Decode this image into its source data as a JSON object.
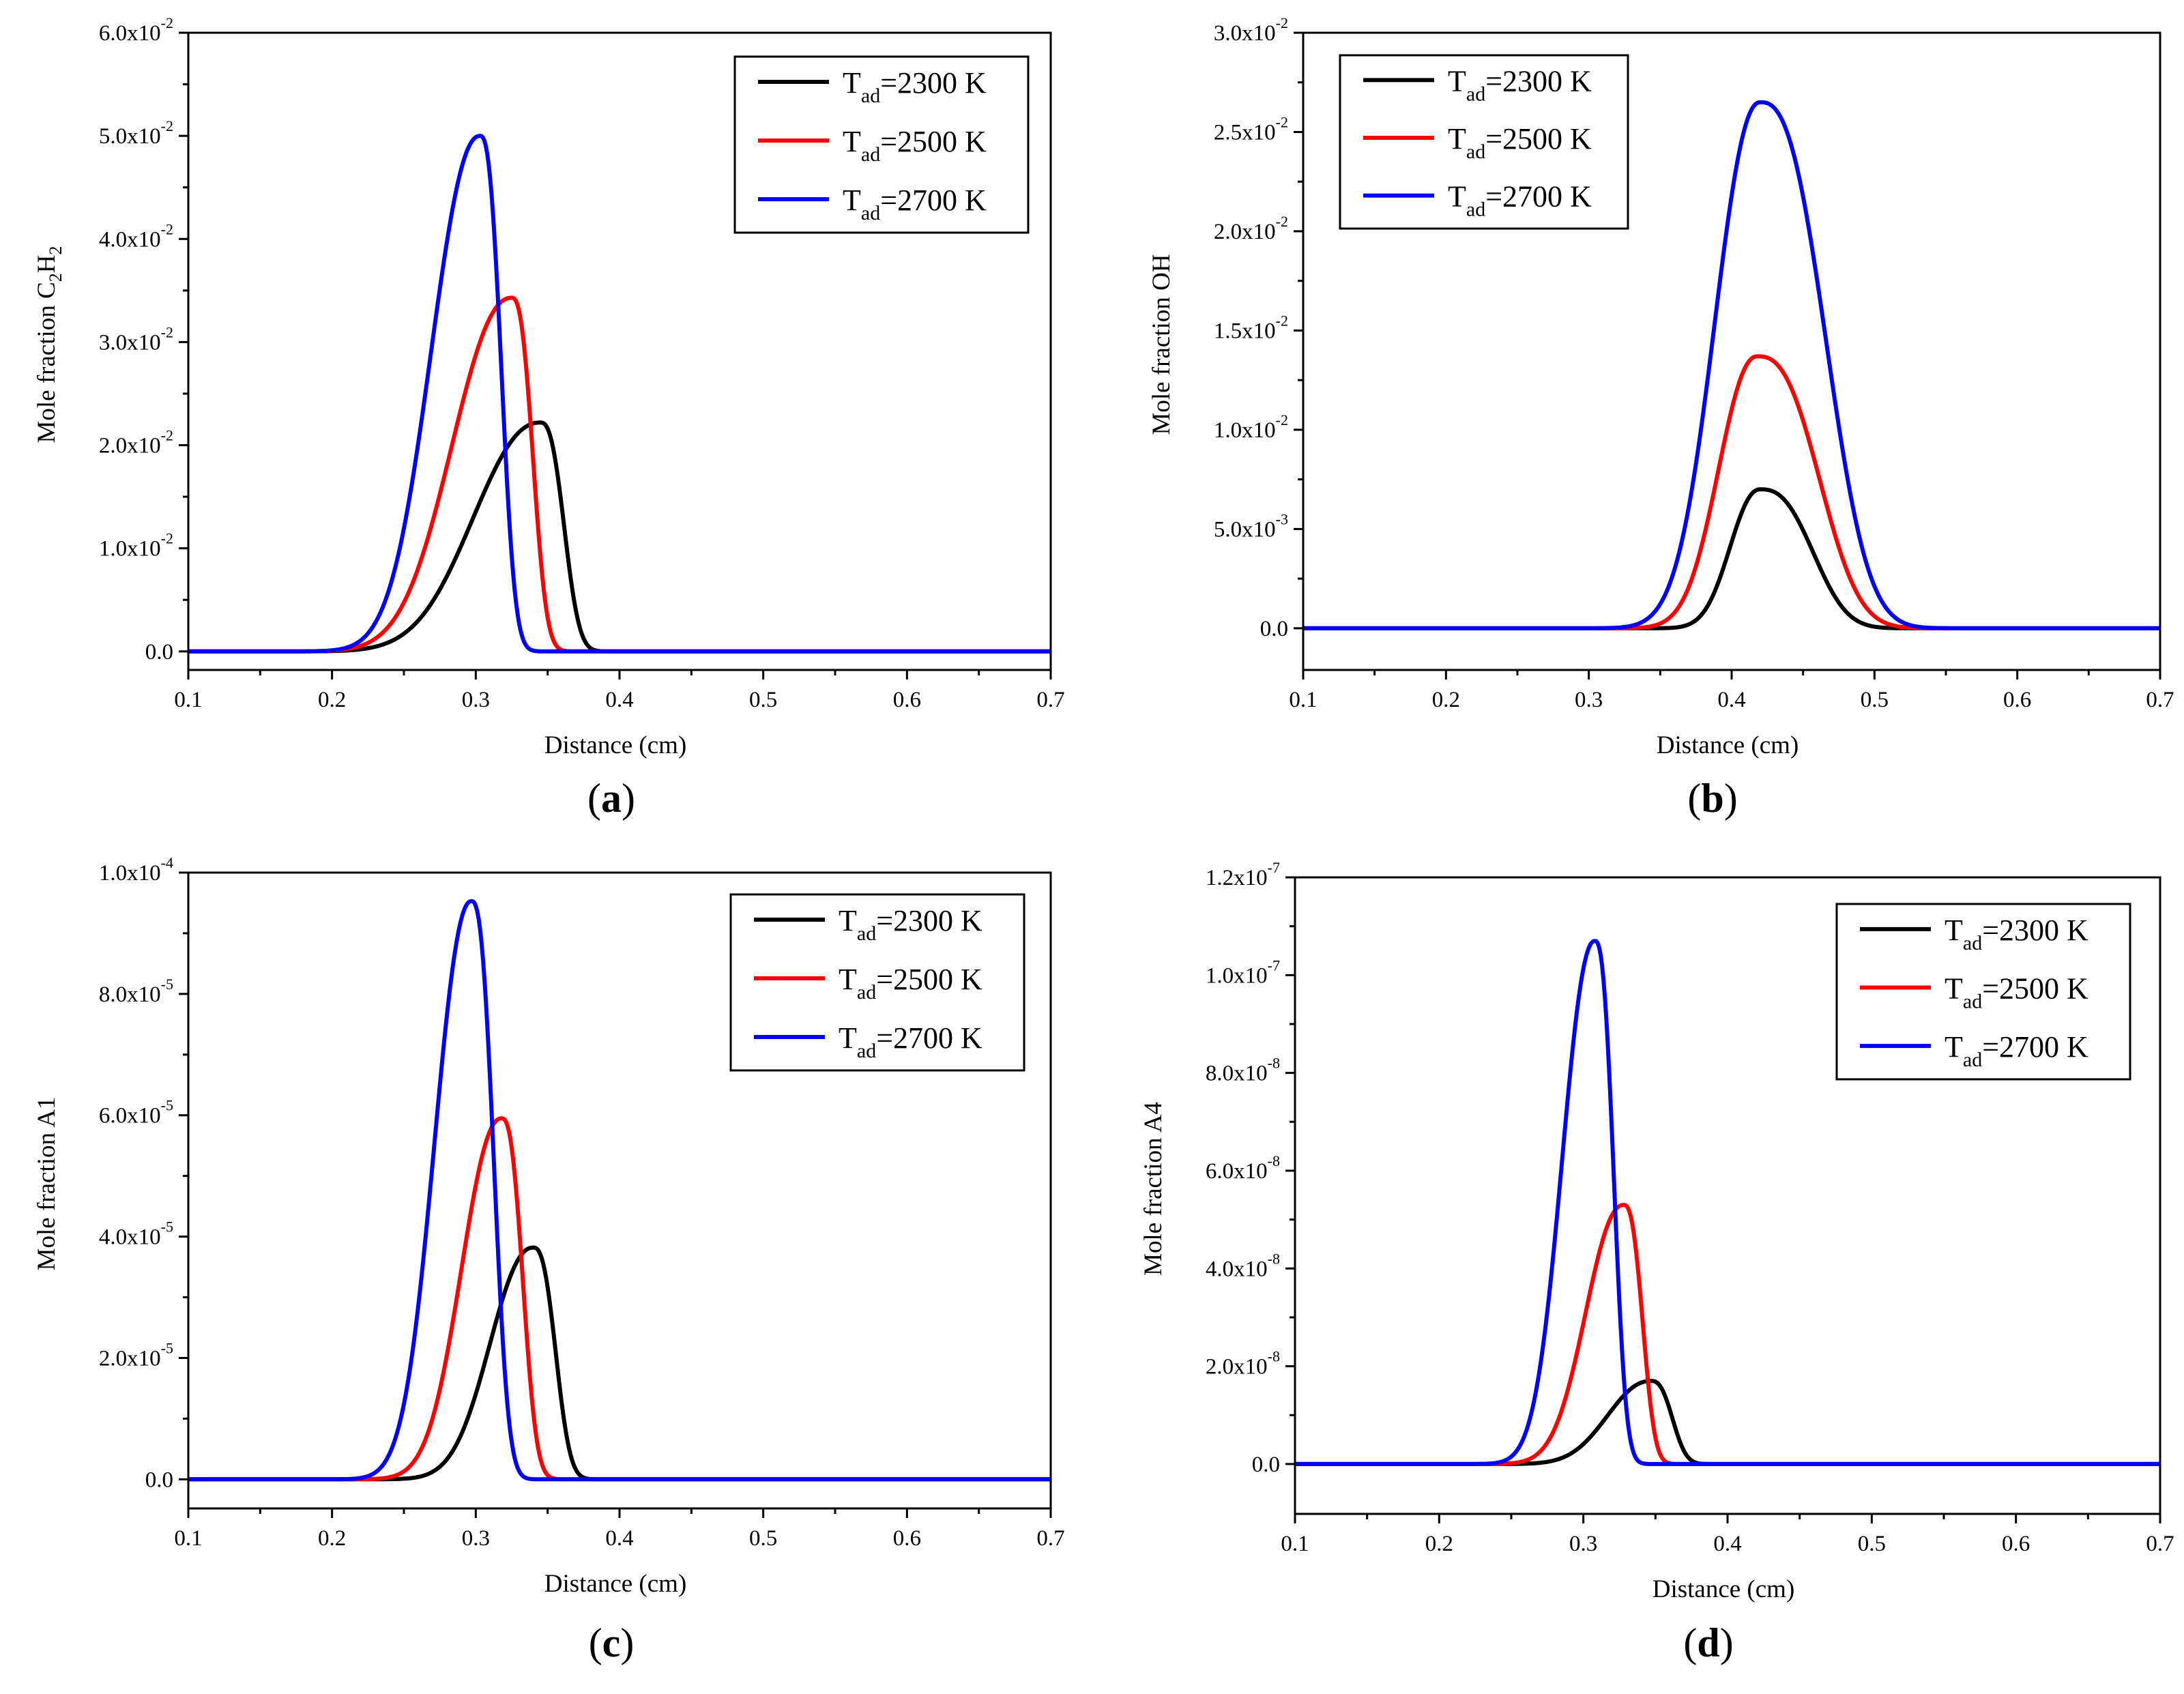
{
  "chart_data": [
    {
      "id": "a",
      "type": "line",
      "panel_label": "a",
      "xlabel": "Distance (cm)",
      "ylabel": "Mole fraction C2H2",
      "ylabel_parts": [
        [
          "Mole fraction C",
          ""
        ],
        [
          "2",
          "sub"
        ],
        [
          "H",
          ""
        ],
        [
          "2",
          "sub"
        ]
      ],
      "xlim": [
        0.1,
        0.7
      ],
      "ylim": [
        -0.0018,
        0.06
      ],
      "x_ticks": [
        0.1,
        0.2,
        0.3,
        0.4,
        0.5,
        0.6,
        0.7
      ],
      "x_tick_labels": [
        "0.1",
        "0.2",
        "0.3",
        "0.4",
        "0.5",
        "0.6",
        "0.7"
      ],
      "y_ticks": [
        {
          "value": 0.0,
          "label": "0.0"
        },
        {
          "value": 0.01,
          "mantissa": "1.0x10",
          "exp": "-2"
        },
        {
          "value": 0.02,
          "mantissa": "2.0x10",
          "exp": "-2"
        },
        {
          "value": 0.03,
          "mantissa": "3.0x10",
          "exp": "-2"
        },
        {
          "value": 0.04,
          "mantissa": "4.0x10",
          "exp": "-2"
        },
        {
          "value": 0.05,
          "mantissa": "5.0x10",
          "exp": "-2"
        },
        {
          "value": 0.06,
          "mantissa": "6.0x10",
          "exp": "-2"
        }
      ],
      "legend_position": "top-right",
      "series": [
        {
          "base": "T",
          "sub": "ad",
          "suffix": "=2300 K",
          "color": "#000000",
          "peak": 0.0222,
          "peak_x": 0.345,
          "left_width": 0.062,
          "right_width": 0.02
        },
        {
          "base": "T",
          "sub": "ad",
          "suffix": "=2500 K",
          "color": "#ff0000",
          "peak": 0.0343,
          "peak_x": 0.325,
          "left_width": 0.055,
          "right_width": 0.018
        },
        {
          "base": "T",
          "sub": "ad",
          "suffix": "=2700 K",
          "color": "#0000ff",
          "peak": 0.05,
          "peak_x": 0.303,
          "left_width": 0.045,
          "right_width": 0.018
        }
      ]
    },
    {
      "id": "b",
      "type": "line",
      "panel_label": "b",
      "xlabel": "Distance (cm)",
      "ylabel": "Mole fraction OH",
      "ylabel_parts": [
        [
          "Mole fraction OH",
          ""
        ]
      ],
      "xlim": [
        0.1,
        0.7
      ],
      "ylim": [
        -0.0021,
        0.03
      ],
      "x_ticks": [
        0.1,
        0.2,
        0.3,
        0.4,
        0.5,
        0.6,
        0.7
      ],
      "x_tick_labels": [
        "0.1",
        "0.2",
        "0.3",
        "0.4",
        "0.5",
        "0.6",
        "0.7"
      ],
      "y_ticks": [
        {
          "value": 0.0,
          "label": "0.0"
        },
        {
          "value": 0.005,
          "mantissa": "5.0x10",
          "exp": "-3"
        },
        {
          "value": 0.01,
          "mantissa": "1.0x10",
          "exp": "-2"
        },
        {
          "value": 0.015,
          "mantissa": "1.5x10",
          "exp": "-2"
        },
        {
          "value": 0.02,
          "mantissa": "2.0x10",
          "exp": "-2"
        },
        {
          "value": 0.025,
          "mantissa": "2.5x10",
          "exp": "-2"
        },
        {
          "value": 0.03,
          "mantissa": "3.0x10",
          "exp": "-2"
        }
      ],
      "legend_position": "top-left",
      "series": [
        {
          "base": "T",
          "sub": "ad",
          "suffix": "=2300 K",
          "color": "#000000",
          "peak": 0.007,
          "peak_x": 0.42,
          "left_width": 0.028,
          "right_width": 0.045
        },
        {
          "base": "T",
          "sub": "ad",
          "suffix": "=2500 K",
          "color": "#ff0000",
          "peak": 0.0137,
          "peak_x": 0.418,
          "left_width": 0.036,
          "right_width": 0.053
        },
        {
          "base": "T",
          "sub": "ad",
          "suffix": "=2700 K",
          "color": "#0000ff",
          "peak": 0.0265,
          "peak_x": 0.42,
          "left_width": 0.042,
          "right_width": 0.056
        }
      ]
    },
    {
      "id": "c",
      "type": "line",
      "panel_label": "c",
      "xlabel": "Distance (cm)",
      "ylabel": "Mole fraction A1",
      "ylabel_parts": [
        [
          "Mole fraction A1",
          ""
        ]
      ],
      "xlim": [
        0.1,
        0.7
      ],
      "ylim": [
        -4.8e-06,
        0.0001
      ],
      "x_ticks": [
        0.1,
        0.2,
        0.3,
        0.4,
        0.5,
        0.6,
        0.7
      ],
      "x_tick_labels": [
        "0.1",
        "0.2",
        "0.3",
        "0.4",
        "0.5",
        "0.6",
        "0.7"
      ],
      "y_ticks": [
        {
          "value": 0.0,
          "label": "0.0"
        },
        {
          "value": 2e-05,
          "mantissa": "2.0x10",
          "exp": "-5"
        },
        {
          "value": 4e-05,
          "mantissa": "4.0x10",
          "exp": "-5"
        },
        {
          "value": 6e-05,
          "mantissa": "6.0x10",
          "exp": "-5"
        },
        {
          "value": 8e-05,
          "mantissa": "8.0x10",
          "exp": "-5"
        },
        {
          "value": 0.0001,
          "mantissa": "1.0x10",
          "exp": "-4"
        }
      ],
      "legend_position": "top-right",
      "series": [
        {
          "base": "T",
          "sub": "ad",
          "suffix": "=2300 K",
          "color": "#000000",
          "peak": 3.82e-05,
          "peak_x": 0.34,
          "left_width": 0.04,
          "right_width": 0.019
        },
        {
          "base": "T",
          "sub": "ad",
          "suffix": "=2500 K",
          "color": "#ff0000",
          "peak": 5.95e-05,
          "peak_x": 0.318,
          "left_width": 0.037,
          "right_width": 0.018
        },
        {
          "base": "T",
          "sub": "ad",
          "suffix": "=2700 K",
          "color": "#0000ff",
          "peak": 9.53e-05,
          "peak_x": 0.297,
          "left_width": 0.034,
          "right_width": 0.019
        }
      ]
    },
    {
      "id": "d",
      "type": "line",
      "panel_label": "d",
      "xlabel": "Distance (cm)",
      "ylabel": "Mole fraction A4",
      "ylabel_parts": [
        [
          "Mole fraction A4",
          ""
        ]
      ],
      "xlim": [
        0.1,
        0.7
      ],
      "ylim": [
        -1.02e-08,
        1.2e-07
      ],
      "x_ticks": [
        0.1,
        0.2,
        0.3,
        0.4,
        0.5,
        0.6,
        0.7
      ],
      "x_tick_labels": [
        "0.1",
        "0.2",
        "0.3",
        "0.4",
        "0.5",
        "0.6",
        "0.7"
      ],
      "y_ticks": [
        {
          "value": 0.0,
          "label": "0.0"
        },
        {
          "value": 2e-08,
          "mantissa": "2.0x10",
          "exp": "-8"
        },
        {
          "value": 4e-08,
          "mantissa": "4.0x10",
          "exp": "-8"
        },
        {
          "value": 6e-08,
          "mantissa": "6.0x10",
          "exp": "-8"
        },
        {
          "value": 8e-08,
          "mantissa": "8.0x10",
          "exp": "-8"
        },
        {
          "value": 1e-07,
          "mantissa": "1.0x10",
          "exp": "-7"
        },
        {
          "value": 1.2e-07,
          "mantissa": "1.2x10",
          "exp": "-7"
        }
      ],
      "legend_position": "top-right",
      "series": [
        {
          "base": "T",
          "sub": "ad",
          "suffix": "=2300 K",
          "color": "#000000",
          "peak": 1.7e-08,
          "peak_x": 0.347,
          "left_width": 0.04,
          "right_width": 0.018
        },
        {
          "base": "T",
          "sub": "ad",
          "suffix": "=2500 K",
          "color": "#ff0000",
          "peak": 5.3e-08,
          "peak_x": 0.328,
          "left_width": 0.035,
          "right_width": 0.016
        },
        {
          "base": "T",
          "sub": "ad",
          "suffix": "=2700 K",
          "color": "#0000ff",
          "peak": 1.07e-07,
          "peak_x": 0.308,
          "left_width": 0.03,
          "right_width": 0.016
        }
      ]
    }
  ]
}
